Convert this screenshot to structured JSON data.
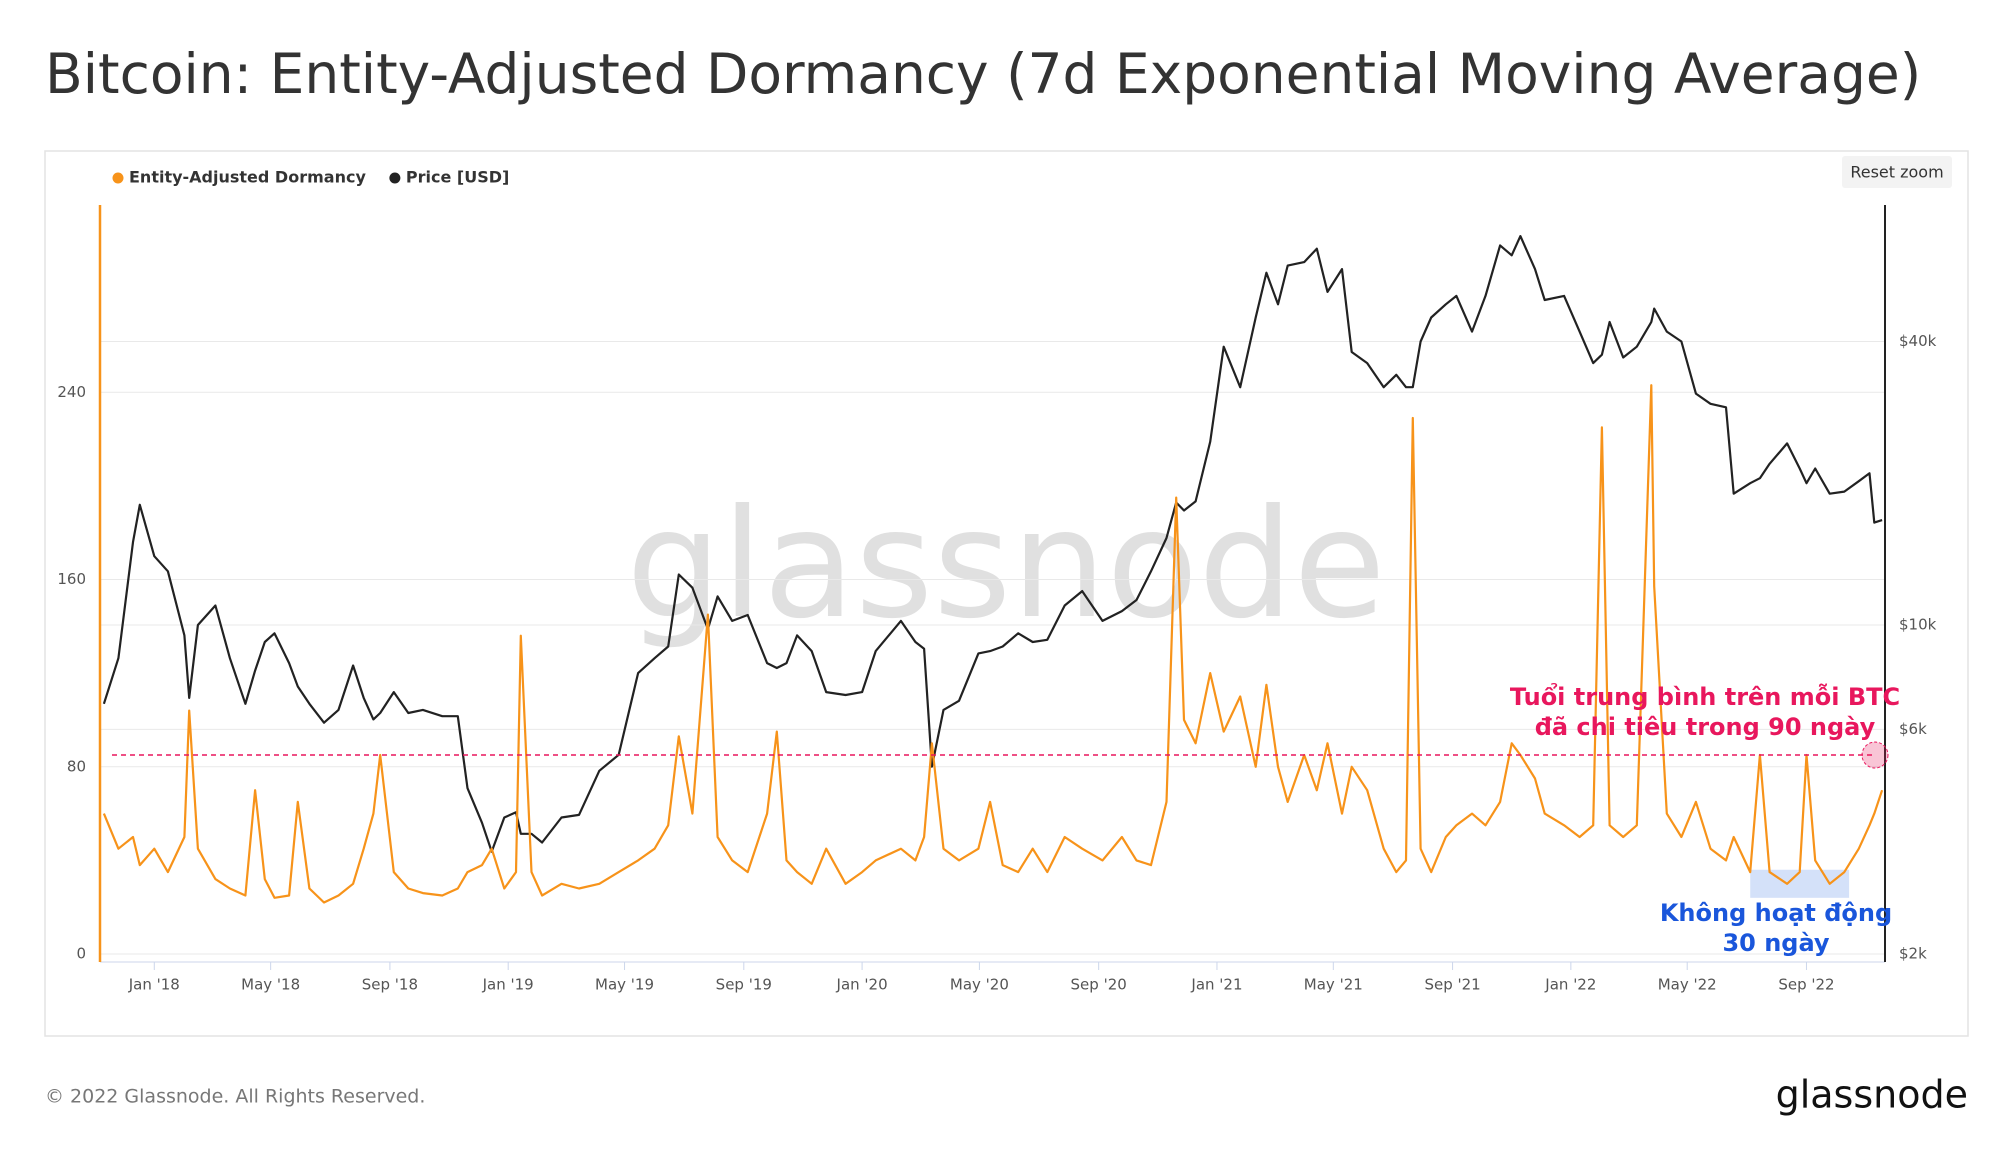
{
  "chart_data": {
    "type": "line",
    "title": "Bitcoin: Entity-Adjusted Dormancy (7d Exponential Moving Average)",
    "footer": "© 2022 Glassnode. All Rights Reserved.",
    "brand": "glassnode",
    "watermark": "glassnode",
    "button": "Reset zoom",
    "x": [
      "2017-11-10",
      "2017-11-25",
      "2017-12-10",
      "2017-12-17",
      "2018-01-01",
      "2018-01-15",
      "2018-02-01",
      "2018-02-06",
      "2018-02-15",
      "2018-03-05",
      "2018-03-20",
      "2018-04-05",
      "2018-04-15",
      "2018-04-25",
      "2018-05-05",
      "2018-05-20",
      "2018-05-29",
      "2018-06-10",
      "2018-06-25",
      "2018-07-10",
      "2018-07-25",
      "2018-08-05",
      "2018-08-15",
      "2018-08-22",
      "2018-09-05",
      "2018-09-20",
      "2018-10-05",
      "2018-10-25",
      "2018-11-10",
      "2018-11-20",
      "2018-12-05",
      "2018-12-15",
      "2018-12-28",
      "2019-01-09",
      "2019-01-14",
      "2019-01-25",
      "2019-02-05",
      "2019-02-25",
      "2019-03-15",
      "2019-04-05",
      "2019-04-25",
      "2019-05-15",
      "2019-06-01",
      "2019-06-15",
      "2019-06-26",
      "2019-07-10",
      "2019-07-26",
      "2019-08-05",
      "2019-08-20",
      "2019-09-05",
      "2019-09-25",
      "2019-10-05",
      "2019-10-15",
      "2019-10-26",
      "2019-11-10",
      "2019-11-25",
      "2019-12-15",
      "2020-01-01",
      "2020-01-15",
      "2020-02-10",
      "2020-02-25",
      "2020-03-05",
      "2020-03-13",
      "2020-03-25",
      "2020-04-10",
      "2020-04-30",
      "2020-05-12",
      "2020-05-25",
      "2020-06-10",
      "2020-06-25",
      "2020-07-10",
      "2020-07-28",
      "2020-08-15",
      "2020-09-05",
      "2020-09-25",
      "2020-10-10",
      "2020-10-25",
      "2020-11-10",
      "2020-11-20",
      "2020-11-28",
      "2020-12-10",
      "2020-12-25",
      "2021-01-08",
      "2021-01-25",
      "2021-02-10",
      "2021-02-21",
      "2021-03-05",
      "2021-03-15",
      "2021-04-01",
      "2021-04-14",
      "2021-04-25",
      "2021-05-10",
      "2021-05-20",
      "2021-06-05",
      "2021-06-22",
      "2021-07-05",
      "2021-07-15",
      "2021-07-22",
      "2021-07-30",
      "2021-08-10",
      "2021-08-25",
      "2021-09-05",
      "2021-09-21",
      "2021-10-05",
      "2021-10-20",
      "2021-11-01",
      "2021-11-10",
      "2021-11-25",
      "2021-12-05",
      "2021-12-25",
      "2022-01-10",
      "2022-01-24",
      "2022-02-02",
      "2022-02-10",
      "2022-02-24",
      "2022-03-10",
      "2022-03-25",
      "2022-03-28",
      "2022-04-10",
      "2022-04-25",
      "2022-05-10",
      "2022-05-25",
      "2022-06-10",
      "2022-06-18",
      "2022-07-05",
      "2022-07-15",
      "2022-07-25",
      "2022-08-12",
      "2022-08-25",
      "2022-09-01",
      "2022-09-10",
      "2022-09-25",
      "2022-10-10",
      "2022-10-25",
      "2022-11-05",
      "2022-11-10",
      "2022-11-18"
    ],
    "series": [
      {
        "name": "Entity-Adjusted Dormancy",
        "color": "#f7931a",
        "axis": "y",
        "values": [
          60,
          45,
          50,
          38,
          45,
          35,
          50,
          104,
          45,
          32,
          28,
          25,
          70,
          32,
          24,
          25,
          65,
          28,
          22,
          25,
          30,
          45,
          60,
          85,
          35,
          28,
          26,
          25,
          28,
          35,
          38,
          45,
          28,
          35,
          136,
          35,
          25,
          30,
          28,
          30,
          35,
          40,
          45,
          55,
          93,
          60,
          145,
          50,
          40,
          35,
          60,
          95,
          40,
          35,
          30,
          45,
          30,
          35,
          40,
          45,
          40,
          50,
          90,
          45,
          40,
          45,
          65,
          38,
          35,
          45,
          35,
          50,
          45,
          40,
          50,
          40,
          38,
          65,
          195,
          100,
          90,
          120,
          95,
          110,
          80,
          115,
          80,
          65,
          85,
          70,
          90,
          60,
          80,
          70,
          45,
          35,
          40,
          229,
          45,
          35,
          50,
          55,
          60,
          55,
          65,
          90,
          85,
          75,
          60,
          55,
          50,
          55,
          225,
          55,
          50,
          55,
          243,
          157,
          60,
          50,
          65,
          45,
          40,
          50,
          35,
          85,
          35,
          30,
          35,
          85,
          40,
          30,
          35,
          45,
          55,
          60,
          70
        ]
      },
      {
        "name": "Price [USD]",
        "color": "#222222",
        "axis": "y2",
        "values": [
          6800,
          8500,
          15000,
          18000,
          14000,
          13000,
          9500,
          7000,
          10000,
          11000,
          8500,
          6800,
          8000,
          9200,
          9600,
          8300,
          7400,
          6800,
          6200,
          6600,
          8200,
          7000,
          6300,
          6500,
          7200,
          6500,
          6600,
          6400,
          6400,
          4500,
          3800,
          3300,
          3900,
          4000,
          3600,
          3600,
          3450,
          3900,
          3950,
          4900,
          5300,
          7900,
          8500,
          9000,
          12800,
          12000,
          9800,
          11500,
          10200,
          10500,
          8300,
          8100,
          8300,
          9500,
          8800,
          7200,
          7100,
          7200,
          8800,
          10200,
          9200,
          8900,
          5000,
          6600,
          6900,
          8700,
          8800,
          9000,
          9600,
          9200,
          9300,
          11000,
          11800,
          10200,
          10700,
          11300,
          13000,
          15300,
          18200,
          17500,
          18300,
          24500,
          39000,
          32000,
          45000,
          56000,
          48000,
          58000,
          59000,
          63000,
          51000,
          57000,
          38000,
          36000,
          32000,
          34000,
          32000,
          32000,
          40000,
          45000,
          48000,
          50000,
          42000,
          50000,
          64000,
          61000,
          67000,
          57000,
          49000,
          50000,
          42000,
          36000,
          37500,
          44000,
          37000,
          39000,
          44000,
          47000,
          42000,
          40000,
          31000,
          29500,
          29000,
          19000,
          20000,
          20500,
          22000,
          24300,
          21500,
          20000,
          21500,
          19000,
          19200,
          20200,
          21000,
          16500,
          16700
        ]
      }
    ],
    "xlim": [
      "2017-11-06",
      "2022-11-21"
    ],
    "xticks": [
      {
        "value": "2018-01-01",
        "label": "Jan '18"
      },
      {
        "value": "2018-05-01",
        "label": "May '18"
      },
      {
        "value": "2018-09-01",
        "label": "Sep '18"
      },
      {
        "value": "2019-01-01",
        "label": "Jan '19"
      },
      {
        "value": "2019-05-01",
        "label": "May '19"
      },
      {
        "value": "2019-09-01",
        "label": "Sep '19"
      },
      {
        "value": "2020-01-01",
        "label": "Jan '20"
      },
      {
        "value": "2020-05-01",
        "label": "May '20"
      },
      {
        "value": "2020-09-01",
        "label": "Sep '20"
      },
      {
        "value": "2021-01-01",
        "label": "Jan '21"
      },
      {
        "value": "2021-05-01",
        "label": "May '21"
      },
      {
        "value": "2021-09-01",
        "label": "Sep '21"
      },
      {
        "value": "2022-01-01",
        "label": "Jan '22"
      },
      {
        "value": "2022-05-01",
        "label": "May '22"
      },
      {
        "value": "2022-09-01",
        "label": "Sep '22"
      }
    ],
    "ylim": [
      0,
      320
    ],
    "yticks": [
      0,
      80,
      160,
      240
    ],
    "y2lim": [
      2000,
      78000
    ],
    "y2log": true,
    "y2ticks": [
      {
        "value": 2000,
        "label": "$2k"
      },
      {
        "value": 6000,
        "label": "$6k"
      },
      {
        "value": 10000,
        "label": "$10k"
      },
      {
        "value": 40000,
        "label": "$40k"
      }
    ],
    "grid": true,
    "legend": "top-left",
    "reference_line": {
      "value": 85,
      "color": "#e8175d"
    },
    "highlight_box": {
      "x": [
        "2022-07-05",
        "2022-10-15"
      ],
      "y": [
        24,
        36
      ],
      "color": "#c9daf8"
    },
    "annotations": [
      {
        "lines": [
          "Tuổi trung bình trên mỗi BTC",
          "đã chi tiêu trong 90 ngày"
        ],
        "color": "#e8175d"
      },
      {
        "lines": [
          "Không hoạt động",
          "30 ngày"
        ],
        "color": "#1a56db"
      }
    ]
  }
}
